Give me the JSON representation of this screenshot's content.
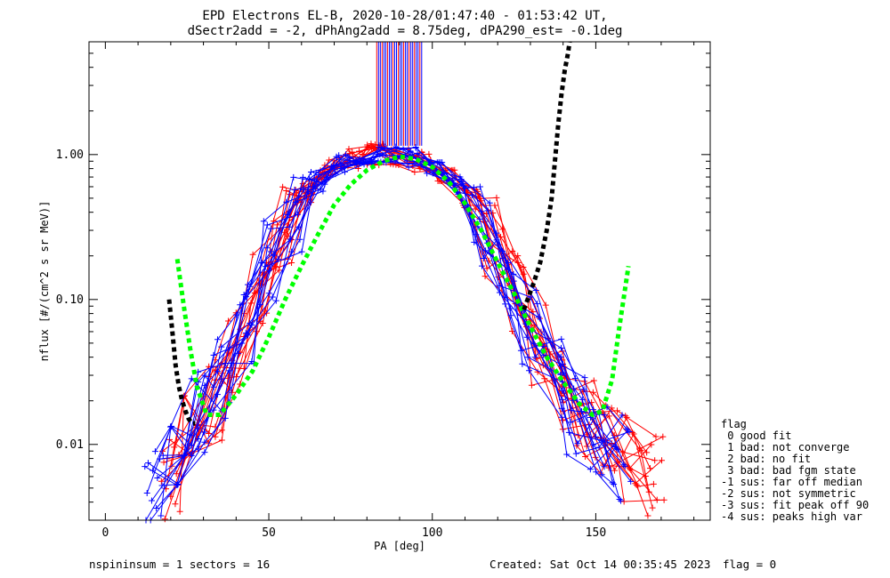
{
  "title_line1": "EPD Electrons EL-B, 2020-10-28/01:47:40 - 01:53:42 UT,",
  "title_line2": "dSectr2add = -2, dPhAng2add = 8.75deg, dPA290_est=  -0.1deg",
  "footer": {
    "left": "nspininsum =  1  sectors = 16",
    "created": "Created: Sat Oct 14 00:35:45 2023",
    "flag": "flag = 0"
  },
  "legend": {
    "title": "flag",
    "items": [
      " 0 good fit",
      " 1 bad: not converge",
      " 2 bad: no fit",
      " 3 bad: bad fgm state",
      "-1 sus: far off median",
      "-2 sus: not symmetric",
      "-3 sus: fit peak off 90",
      "-4 sus: peaks high var"
    ]
  },
  "colors": {
    "series_red": "#ff0000",
    "series_blue": "#0000ff",
    "fit_green": "#00ff00",
    "fit_black": "#000000",
    "axis": "#000000"
  },
  "chart_data": {
    "type": "line",
    "xlabel": "PA [deg]",
    "ylabel": "nflux [#/(cm^2 s sr MeV)]",
    "xlim": [
      -5,
      185
    ],
    "ylim": [
      0.003,
      6.0
    ],
    "yscale": "log",
    "x_ticks": [
      0,
      50,
      100,
      150
    ],
    "x_tick_labels": [
      "0",
      "50",
      "100",
      "150"
    ],
    "y_ticks": [
      0.01,
      0.1,
      1.0
    ],
    "y_tick_labels": [
      "0.01",
      "0.10",
      "1.00"
    ],
    "series": [
      {
        "color": "red",
        "x": [
          20,
          27,
          33,
          40,
          47,
          54,
          61,
          68,
          76,
          83,
          90,
          97,
          104,
          112,
          119,
          126,
          133,
          140,
          147,
          154,
          161,
          168
        ],
        "values": [
          0.006,
          0.012,
          0.02,
          0.045,
          0.12,
          0.3,
          0.55,
          0.78,
          0.92,
          1.0,
          0.98,
          0.9,
          0.75,
          0.5,
          0.28,
          0.12,
          0.05,
          0.025,
          0.014,
          0.01,
          0.008,
          0.006
        ]
      },
      {
        "color": "blue",
        "x": [
          15,
          22,
          29,
          36,
          43,
          50,
          58,
          65,
          72,
          79,
          86,
          94,
          101,
          108,
          115,
          122,
          130,
          137,
          144,
          151,
          158
        ],
        "values": [
          0.005,
          0.009,
          0.016,
          0.03,
          0.07,
          0.18,
          0.4,
          0.65,
          0.85,
          0.95,
          1.0,
          0.95,
          0.82,
          0.6,
          0.33,
          0.15,
          0.06,
          0.028,
          0.016,
          0.011,
          0.008
        ]
      }
    ],
    "fit_green": {
      "x": [
        22,
        24,
        26,
        28,
        31,
        35,
        40,
        45,
        50,
        55,
        60,
        65,
        70,
        75,
        80,
        85,
        90,
        95,
        100,
        105,
        110,
        115,
        120,
        125,
        130,
        135,
        140,
        145,
        149,
        152,
        155,
        157,
        159,
        160
      ],
      "values": [
        0.19,
        0.09,
        0.045,
        0.025,
        0.016,
        0.016,
        0.022,
        0.032,
        0.055,
        0.1,
        0.17,
        0.28,
        0.45,
        0.62,
        0.78,
        0.9,
        0.97,
        0.93,
        0.82,
        0.65,
        0.46,
        0.3,
        0.18,
        0.11,
        0.065,
        0.04,
        0.027,
        0.019,
        0.016,
        0.017,
        0.028,
        0.06,
        0.12,
        0.17
      ]
    },
    "fit_black": {
      "x": [
        19.5,
        20.5,
        21.5,
        22.5,
        23.5,
        24.5,
        25.5,
        26.5,
        27.5,
        128,
        131,
        133,
        135,
        136.5,
        137.5,
        138.5,
        139.5,
        140.5,
        141.5,
        142
      ],
      "values": [
        0.1,
        0.06,
        0.035,
        0.025,
        0.02,
        0.017,
        0.015,
        0.014,
        0.014,
        0.085,
        0.13,
        0.18,
        0.3,
        0.5,
        0.9,
        1.6,
        2.6,
        3.8,
        5.0,
        6.0
      ]
    }
  }
}
